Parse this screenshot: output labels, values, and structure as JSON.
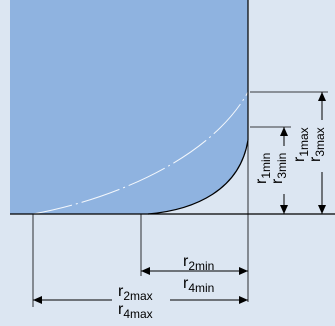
{
  "colors": {
    "background": "#dce6f2",
    "body_fill": "#8fb3e0",
    "outline": "#000000",
    "dimension_line": "#000000"
  },
  "labels": {
    "r1min": {
      "base": "r",
      "sub": "1min"
    },
    "r3min": {
      "base": "r",
      "sub": "3min"
    },
    "r1max": {
      "base": "r",
      "sub": "1max"
    },
    "r3max": {
      "base": "r",
      "sub": "3max"
    },
    "r2min": {
      "base": "r",
      "sub": "2min"
    },
    "r4min": {
      "base": "r",
      "sub": "4min"
    },
    "r2max": {
      "base": "r",
      "sub": "2max"
    },
    "r4max": {
      "base": "r",
      "sub": "4max"
    }
  }
}
